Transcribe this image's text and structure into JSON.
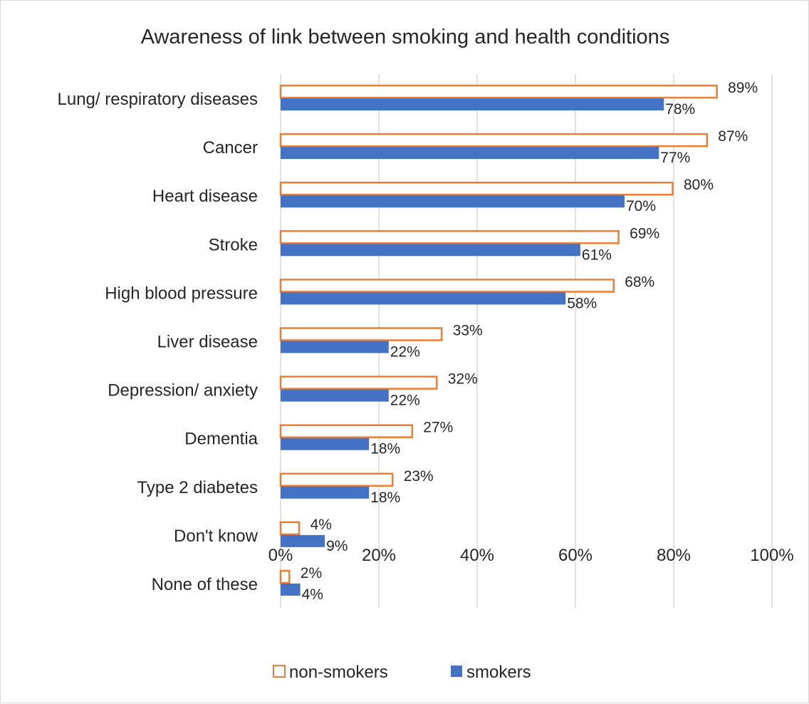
{
  "chart_data": {
    "type": "bar",
    "orientation": "horizontal",
    "title": "Awareness of link between smoking and health conditions",
    "categories": [
      "Lung/ respiratory diseases",
      "Cancer",
      "Heart disease",
      "Stroke",
      "High blood pressure",
      "Liver disease",
      "Depression/ anxiety",
      "Dementia",
      "Type 2 diabetes",
      "Don't know",
      "None of these"
    ],
    "series": [
      {
        "name": "non-smokers",
        "values": [
          89,
          87,
          80,
          69,
          68,
          33,
          32,
          27,
          23,
          4,
          2
        ],
        "labels": [
          "89%",
          "87%",
          "80%",
          "69%",
          "68%",
          "33%",
          "32%",
          "27%",
          "23%",
          "4%",
          "2%"
        ],
        "color": "#ED7D31",
        "style": "outline"
      },
      {
        "name": "smokers",
        "values": [
          78,
          77,
          70,
          61,
          58,
          22,
          22,
          18,
          18,
          9,
          4
        ],
        "labels": [
          "78%",
          "77%",
          "70%",
          "61%",
          "58%",
          "22%",
          "22%",
          "18%",
          "18%",
          "9%",
          "4%"
        ],
        "color": "#4472C4",
        "style": "filled"
      }
    ],
    "xlim": [
      0,
      100
    ],
    "xticks": [
      0,
      20,
      40,
      60,
      80,
      100
    ],
    "xtick_labels": [
      "0%",
      "20%",
      "40%",
      "60%",
      "80%",
      "100%"
    ],
    "grid": true,
    "legend_position": "bottom",
    "xlabel": "",
    "ylabel": ""
  }
}
